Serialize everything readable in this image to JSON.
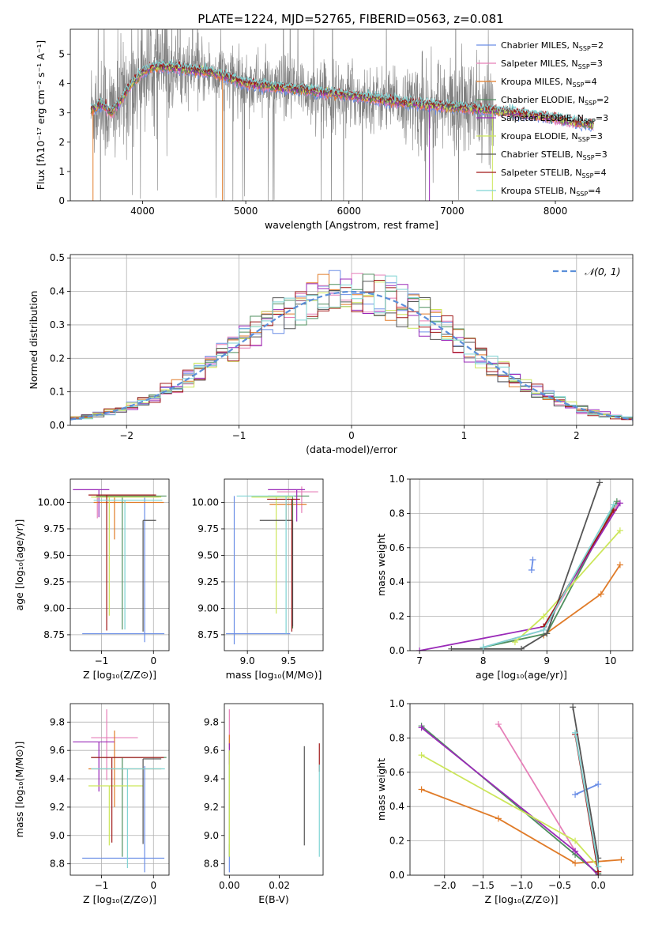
{
  "figure_title": "PLATE=1224, MJD=52765, FIBERID=0563, z=0.081",
  "palette": {
    "s0": "#6b8ee6",
    "s1": "#e67fb8",
    "s2": "#e07b28",
    "s3": "#4f8f5f",
    "s4": "#9a2ab8",
    "s5": "#cce65a",
    "s6": "#555555",
    "s7": "#a01818",
    "s8": "#7fd3d3",
    "data": "#808080",
    "gauss": "#5b8fd9"
  },
  "chart_data": [
    {
      "id": "spectrum",
      "type": "line",
      "xlabel": "wavelength [Angstrom, rest frame]",
      "ylabel": "Flux [fλ10⁻¹⁷ erg cm⁻² s⁻¹ A⁻¹]",
      "xlim": [
        3300,
        8750
      ],
      "ylim": [
        0,
        5.85
      ],
      "xticks": [
        4000,
        5000,
        6000,
        7000,
        8000
      ],
      "yticks": [
        0,
        1,
        2,
        3,
        4,
        5
      ],
      "grid": false,
      "legend_position": "right",
      "continuum": {
        "x": [
          3500,
          3600,
          3700,
          3800,
          3900,
          4000,
          4100,
          4300,
          4500,
          4700,
          5000,
          5500,
          6000,
          6500,
          7000,
          7500,
          8000,
          8300
        ],
        "y": [
          3.1,
          3.3,
          3.0,
          3.5,
          4.0,
          4.4,
          4.55,
          4.55,
          4.45,
          4.35,
          4.0,
          3.8,
          3.6,
          3.35,
          3.2,
          3.05,
          2.8,
          2.6
        ]
      },
      "series": [
        {
          "name": "Chabrier MILES, N_SSP=2"
        },
        {
          "name": "Salpeter MILES, N_SSP=3"
        },
        {
          "name": "Kroupa MILES, N_SSP=4"
        },
        {
          "name": "Chabrier ELODIE, N_SSP=2"
        },
        {
          "name": "Salpeter ELODIE, N_SSP=3"
        },
        {
          "name": "Kroupa ELODIE, N_SSP=3"
        },
        {
          "name": "Chabrier STELIB, N_SSP=3"
        },
        {
          "name": "Salpeter STELIB, N_SSP=4"
        },
        {
          "name": "Kroupa STELIB, N_SSP=4"
        }
      ]
    },
    {
      "id": "residuals",
      "type": "step",
      "xlabel": "(data-model)/error",
      "ylabel": "Normed distribution",
      "xlim": [
        -2.5,
        2.5
      ],
      "ylim": [
        0,
        0.51
      ],
      "xticks": [
        -2,
        -1,
        0,
        1,
        2
      ],
      "xtick_labels": [
        "−2",
        "−1",
        "0",
        "1",
        "2"
      ],
      "yticks": [
        0.0,
        0.1,
        0.2,
        0.3,
        0.4,
        0.5
      ],
      "ytick_labels": [
        "0.0",
        "0.1",
        "0.2",
        "0.3",
        "0.4",
        "0.5"
      ],
      "grid": true,
      "legend_position": "top-right",
      "gauss_label": "𝒩(0, 1)",
      "bin_width": 0.1
    },
    {
      "id": "age-vs-Z",
      "type": "errorbar",
      "xlabel": "Z [log₁₀(Z/Z⊙)]",
      "ylabel": "age  [log₁₀(age/yr)]",
      "xlim": [
        -1.6,
        0.3
      ],
      "ylim": [
        8.6,
        10.22
      ],
      "xticks": [
        -1,
        0
      ],
      "xtick_labels": [
        "−1",
        "0"
      ],
      "yticks": [
        8.75,
        9.0,
        9.25,
        9.5,
        9.75,
        10.0
      ],
      "ytick_labels": [
        "8.75",
        "9.00",
        "9.25",
        "9.50",
        "9.75",
        "10.00"
      ],
      "grid": true,
      "points": [
        {
          "x": -0.17,
          "xerr": [
            1.2,
            0.38
          ],
          "y": 8.76,
          "yerr": [
            0.08,
            1.3
          ]
        },
        {
          "x": -1.08,
          "xerr": [
            0.05,
            1.18
          ],
          "y": 10.05,
          "yerr": [
            0.2,
            0.02
          ]
        },
        {
          "x": -0.75,
          "xerr": [
            0.4,
            0.95
          ],
          "y": 10.0,
          "yerr": [
            0.35,
            0.05
          ]
        },
        {
          "x": -0.6,
          "xerr": [
            0.5,
            0.85
          ],
          "y": 10.06,
          "yerr": [
            1.26,
            0.0
          ]
        },
        {
          "x": -1.05,
          "xerr": [
            0.5,
            0.2
          ],
          "y": 10.12,
          "yerr": [
            0.26,
            0.0
          ]
        },
        {
          "x": -0.85,
          "xerr": [
            0.35,
            1.0
          ],
          "y": 10.05,
          "yerr": [
            1.12,
            0.0
          ]
        },
        {
          "x": -0.2,
          "xerr": [
            0.0,
            0.25
          ],
          "y": 9.83,
          "yerr": [
            1.05,
            0.0
          ]
        },
        {
          "x": -0.9,
          "xerr": [
            0.35,
            0.95
          ],
          "y": 10.07,
          "yerr": [
            1.28,
            0.0
          ]
        },
        {
          "x": -0.55,
          "xerr": [
            0.6,
            0.72
          ],
          "y": 10.02,
          "yerr": [
            1.22,
            0.0
          ]
        }
      ]
    },
    {
      "id": "age-vs-mass",
      "type": "errorbar",
      "xlabel": "mass [log₁₀(M/M⊙)]",
      "ylabel": "",
      "xlim": [
        8.72,
        9.92
      ],
      "ylim": [
        8.6,
        10.22
      ],
      "xticks": [
        9.0,
        9.5
      ],
      "xtick_labels": [
        "9.0",
        "9.5"
      ],
      "yticks": [
        8.75,
        9.0,
        9.25,
        9.5,
        9.75,
        10.0
      ],
      "ytick_labels": [
        "8.75",
        "9.00",
        "9.25",
        "9.50",
        "9.75",
        "10.00"
      ],
      "grid": true,
      "points": [
        {
          "x": 8.84,
          "xerr": [
            0.1,
            0.68
          ],
          "y": 8.76,
          "yerr": [
            0.1,
            1.3
          ]
        },
        {
          "x": 9.66,
          "xerr": [
            0.3,
            0.2
          ],
          "y": 10.1,
          "yerr": [
            0.2,
            0.05
          ]
        },
        {
          "x": 9.47,
          "xerr": [
            0.2,
            0.25
          ],
          "y": 9.98,
          "yerr": [
            0.15,
            0.05
          ]
        },
        {
          "x": 9.55,
          "xerr": [
            0.3,
            0.2
          ],
          "y": 10.06,
          "yerr": [
            1.25,
            0.0
          ]
        },
        {
          "x": 9.6,
          "xerr": [
            0.35,
            0.1
          ],
          "y": 10.12,
          "yerr": [
            0.3,
            0.0
          ]
        },
        {
          "x": 9.35,
          "xerr": [
            0.3,
            0.2
          ],
          "y": 10.05,
          "yerr": [
            1.1,
            0.0
          ]
        },
        {
          "x": 9.55,
          "xerr": [
            0.4,
            0.0
          ],
          "y": 9.83,
          "yerr": [
            1.0,
            0.0
          ]
        },
        {
          "x": 9.54,
          "xerr": [
            0.3,
            0.1
          ],
          "y": 10.03,
          "yerr": [
            1.25,
            0.0
          ]
        },
        {
          "x": 9.47,
          "xerr": [
            0.6,
            0.1
          ],
          "y": 10.06,
          "yerr": [
            1.3,
            0.0
          ]
        }
      ]
    },
    {
      "id": "weight-vs-age",
      "type": "line",
      "xlabel": "age  [log₁₀(age/yr)]",
      "ylabel": "mass weight",
      "xlim": [
        6.85,
        10.35
      ],
      "ylim": [
        0,
        1.0
      ],
      "xticks": [
        7,
        8,
        9,
        10
      ],
      "xtick_labels": [
        "7",
        "8",
        "9",
        "10"
      ],
      "yticks": [
        0.0,
        0.2,
        0.4,
        0.6,
        0.8,
        1.0
      ],
      "ytick_labels": [
        "0.0",
        "0.2",
        "0.4",
        "0.6",
        "0.8",
        "1.0"
      ],
      "grid": true,
      "series_points": [
        {
          "x": [
            8.76,
            8.78
          ],
          "y": [
            0.47,
            0.53
          ]
        },
        {
          "x": [
            8.0,
            8.95,
            10.12
          ],
          "y": [
            0.02,
            0.12,
            0.86
          ]
        },
        {
          "x": [
            8.95,
            9.85,
            10.15
          ],
          "y": [
            0.09,
            0.33,
            0.5
          ]
        },
        {
          "x": [
            8.0,
            9.0,
            10.1
          ],
          "y": [
            0.02,
            0.1,
            0.87
          ]
        },
        {
          "x": [
            7.0,
            8.95,
            10.15
          ],
          "y": [
            0.0,
            0.14,
            0.86
          ]
        },
        {
          "x": [
            8.5,
            8.95,
            10.15
          ],
          "y": [
            0.05,
            0.2,
            0.7
          ]
        },
        {
          "x": [
            7.5,
            8.6,
            9.0,
            9.83
          ],
          "y": [
            0.01,
            0.01,
            0.1,
            0.98
          ]
        },
        {
          "x": [
            8.95,
            10.05
          ],
          "y": [
            0.14,
            0.82
          ]
        },
        {
          "x": [
            8.0,
            8.95,
            10.05
          ],
          "y": [
            0.02,
            0.12,
            0.85
          ]
        }
      ]
    },
    {
      "id": "mass-vs-Z",
      "type": "errorbar",
      "xlabel": "Z [log₁₀(Z/Z⊙)]",
      "ylabel": "mass [log₁₀(M/M⊙)]",
      "xlim": [
        -1.6,
        0.3
      ],
      "ylim": [
        8.72,
        9.93
      ],
      "xticks": [
        -1,
        0
      ],
      "xtick_labels": [
        "−1",
        "0"
      ],
      "yticks": [
        8.8,
        9.0,
        9.2,
        9.4,
        9.6,
        9.8
      ],
      "ytick_labels": [
        "8.8",
        "9.0",
        "9.2",
        "9.4",
        "9.6",
        "9.8"
      ],
      "grid": true,
      "points": [
        {
          "x": -0.17,
          "xerr": [
            1.2,
            0.38
          ],
          "y": 8.84,
          "yerr": [
            0.1,
            0.65
          ]
        },
        {
          "x": -0.9,
          "xerr": [
            0.3,
            0.6
          ],
          "y": 9.69,
          "yerr": [
            0.3,
            0.2
          ]
        },
        {
          "x": -0.75,
          "xerr": [
            0.5,
            0.9
          ],
          "y": 9.47,
          "yerr": [
            0.27,
            0.27
          ]
        },
        {
          "x": -0.6,
          "xerr": [
            0.6,
            0.85
          ],
          "y": 9.55,
          "yerr": [
            0.7,
            0.0
          ]
        },
        {
          "x": -1.05,
          "xerr": [
            0.5,
            0.3
          ],
          "y": 9.66,
          "yerr": [
            0.35,
            0.0
          ]
        },
        {
          "x": -0.85,
          "xerr": [
            0.4,
            0.65
          ],
          "y": 9.35,
          "yerr": [
            0.42,
            0.0
          ]
        },
        {
          "x": -0.2,
          "xerr": [
            0.0,
            0.35
          ],
          "y": 9.54,
          "yerr": [
            0.6,
            0.0
          ]
        },
        {
          "x": -0.8,
          "xerr": [
            0.4,
            1.0
          ],
          "y": 9.55,
          "yerr": [
            0.6,
            0.0
          ]
        },
        {
          "x": -0.5,
          "xerr": [
            0.7,
            0.72
          ],
          "y": 9.47,
          "yerr": [
            0.7,
            0.0
          ]
        }
      ]
    },
    {
      "id": "mass-vs-ebv",
      "type": "errorbar",
      "xlabel": "E(B-V)",
      "ylabel": "",
      "xlim": [
        -0.002,
        0.0375
      ],
      "ylim": [
        8.72,
        9.93
      ],
      "xticks": [
        0.0,
        0.02
      ],
      "xtick_labels": [
        "0.00",
        "0.02"
      ],
      "yticks": [
        8.8,
        9.0,
        9.2,
        9.4,
        9.6,
        9.8
      ],
      "ytick_labels": [
        "8.8",
        "9.0",
        "9.2",
        "9.4",
        "9.6",
        "9.8"
      ],
      "grid": false,
      "points": [
        {
          "x": 0.0,
          "y": 8.84,
          "yerr": [
            0.1,
            0.1
          ]
        },
        {
          "x": 0.0,
          "y": 9.69,
          "yerr": [
            0.05,
            0.2
          ]
        },
        {
          "x": 0.0,
          "y": 9.66,
          "yerr": [
            0.05,
            0.05
          ]
        },
        {
          "x": 0.0,
          "y": 9.55,
          "yerr": [
            0.7,
            0.05
          ]
        },
        {
          "x": 0.0,
          "y": 9.6,
          "yerr": [
            0.1,
            0.05
          ]
        },
        {
          "x": 0.0,
          "y": 9.35,
          "yerr": [
            0.5,
            0.25
          ]
        },
        {
          "x": 0.03,
          "y": 9.28,
          "yerr": [
            0.35,
            0.35
          ]
        },
        {
          "x": 0.036,
          "y": 9.55,
          "yerr": [
            0.1,
            0.1
          ]
        },
        {
          "x": 0.036,
          "y": 9.2,
          "yerr": [
            0.35,
            0.3
          ]
        }
      ]
    },
    {
      "id": "weight-vs-Z",
      "type": "line",
      "xlabel": "Z [log₁₀(Z/Z⊙)]",
      "ylabel": "mass weight",
      "xlim": [
        -2.45,
        0.45
      ],
      "ylim": [
        0,
        1.0
      ],
      "xticks": [
        -2.0,
        -1.5,
        -1.0,
        -0.5,
        0.0
      ],
      "xtick_labels": [
        "−2.0",
        "−1.5",
        "−1.0",
        "−0.5",
        "0.0"
      ],
      "yticks": [
        0.0,
        0.2,
        0.4,
        0.6,
        0.8,
        1.0
      ],
      "ytick_labels": [
        "0.0",
        "0.2",
        "0.4",
        "0.6",
        "0.8",
        "1.0"
      ],
      "grid": true,
      "series_points": [
        {
          "x": [
            -0.3,
            0.0
          ],
          "y": [
            0.47,
            0.53
          ]
        },
        {
          "x": [
            -1.3,
            -0.3,
            0.0
          ],
          "y": [
            0.88,
            0.14,
            0.0
          ]
        },
        {
          "x": [
            -2.3,
            -1.3,
            -0.3,
            0.3
          ],
          "y": [
            0.5,
            0.33,
            0.07,
            0.09
          ]
        },
        {
          "x": [
            -2.3,
            -0.3,
            0.0
          ],
          "y": [
            0.87,
            0.12,
            0.01
          ]
        },
        {
          "x": [
            -2.3,
            -0.3,
            0.0
          ],
          "y": [
            0.86,
            0.14,
            0.0
          ]
        },
        {
          "x": [
            -2.3,
            -0.3,
            0.0
          ],
          "y": [
            0.7,
            0.2,
            0.05
          ]
        },
        {
          "x": [
            -0.33,
            0.0,
            0.0
          ],
          "y": [
            0.98,
            0.1,
            0.0
          ]
        },
        {
          "x": [
            -0.3,
            0.0
          ],
          "y": [
            0.82,
            0.02
          ]
        },
        {
          "x": [
            -0.3,
            0.0
          ],
          "y": [
            0.83,
            0.05
          ]
        }
      ]
    }
  ]
}
